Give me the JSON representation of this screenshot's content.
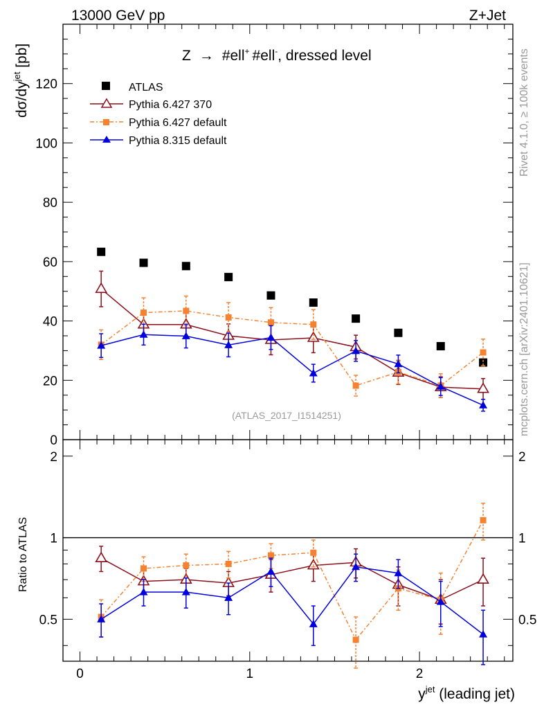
{
  "header": {
    "left": "13000 GeV pp",
    "right": "Z+Jet"
  },
  "side_text": {
    "rivet": "Rivet 4.1.0, ≥ 100k events",
    "mcplots": "mcplots.cern.ch [arXiv:2401.10621]"
  },
  "watermark": "(ATLAS_2017_I1514251)",
  "colors": {
    "atlas": "#000000",
    "py6_370": "#8b0f1a",
    "py6_default": "#f58231",
    "py8": "#0000dd"
  },
  "chart_data": [
    {
      "type": "scatter",
      "panel": "main",
      "title": "Z → #ell⁺ #ell⁻, dressed level",
      "title_parts": {
        "pre": "Z",
        "arrow": "→",
        "lep1": "#ell",
        "sup1": "+",
        "lep2": "#ell",
        "sup2": "-",
        "post": ", dressed level"
      },
      "ylabel_parts": {
        "base": "dσ/dy",
        "sup": "jet",
        "unit": " [pb]"
      },
      "xlim": [
        -0.1,
        2.55
      ],
      "ylim": [
        0,
        140
      ],
      "yticks": [
        0,
        20,
        40,
        60,
        80,
        100,
        120
      ],
      "ytick_labels": [
        "0",
        "20",
        "40",
        "60",
        "80",
        "100",
        "120"
      ],
      "x": [
        0.125,
        0.375,
        0.625,
        0.875,
        1.125,
        1.375,
        1.625,
        1.875,
        2.125,
        2.375
      ],
      "legend": [
        "ATLAS",
        "Pythia 6.427 370",
        "Pythia 6.427 default",
        "Pythia 8.315 default"
      ],
      "series": [
        {
          "name": "ATLAS",
          "values": [
            63.3,
            59.6,
            58.5,
            54.8,
            48.6,
            46.2,
            40.8,
            36.0,
            31.5,
            26.0
          ],
          "errors": [
            0.6,
            0.6,
            0.6,
            0.6,
            0.6,
            0.6,
            0.6,
            0.6,
            0.6,
            0.6
          ]
        },
        {
          "name": "Pythia 6.427 370",
          "values": [
            50.8,
            38.8,
            38.8,
            35.0,
            33.6,
            34.3,
            31.2,
            22.6,
            17.7,
            17.1
          ],
          "errors": [
            6.0,
            4.0,
            4.0,
            4.0,
            5.0,
            5.0,
            4.0,
            4.0,
            3.5,
            3.5
          ]
        },
        {
          "name": "Pythia 6.427 default",
          "values": [
            32.0,
            42.8,
            43.4,
            41.2,
            39.5,
            38.8,
            18.2,
            22.8,
            18.2,
            29.4
          ],
          "errors": [
            5.0,
            5.0,
            5.0,
            5.0,
            5.0,
            5.0,
            3.5,
            4.0,
            4.0,
            4.5
          ]
        },
        {
          "name": "Pythia 8.315 default",
          "values": [
            31.7,
            35.4,
            34.9,
            31.9,
            34.4,
            22.4,
            29.9,
            25.5,
            17.9,
            11.6
          ],
          "errors": [
            4.0,
            3.5,
            4.0,
            4.0,
            4.0,
            3.0,
            3.5,
            3.0,
            3.0,
            2.0
          ]
        }
      ]
    },
    {
      "type": "scatter",
      "panel": "ratio",
      "ylabel": "Ratio to ATLAS",
      "xlabel_parts": {
        "base": "y",
        "sup": "jet",
        "rest": " (leading jet)"
      },
      "xlim": [
        -0.1,
        2.55
      ],
      "ylim": [
        0.35,
        2.3
      ],
      "yscale": "log",
      "yticks": [
        0.5,
        1,
        2
      ],
      "ytick_labels": [
        "0.5",
        "1",
        "2"
      ],
      "xticks": [
        0,
        1,
        2
      ],
      "xtick_labels": [
        "0",
        "1",
        "2"
      ],
      "reference_line": 1,
      "x": [
        0.125,
        0.375,
        0.625,
        0.875,
        1.125,
        1.375,
        1.625,
        1.875,
        2.125,
        2.375
      ],
      "series": [
        {
          "name": "Pythia 6.427 370",
          "values": [
            0.84,
            0.69,
            0.7,
            0.68,
            0.73,
            0.79,
            0.81,
            0.67,
            0.59,
            0.7
          ],
          "errors": [
            0.09,
            0.07,
            0.07,
            0.07,
            0.1,
            0.1,
            0.1,
            0.11,
            0.11,
            0.14
          ]
        },
        {
          "name": "Pythia 6.427 default",
          "values": [
            0.51,
            0.77,
            0.79,
            0.8,
            0.86,
            0.88,
            0.42,
            0.65,
            0.59,
            1.16
          ],
          "errors": [
            0.08,
            0.08,
            0.08,
            0.09,
            0.09,
            0.1,
            0.09,
            0.11,
            0.15,
            0.18
          ]
        },
        {
          "name": "Pythia 8.315 default",
          "values": [
            0.5,
            0.63,
            0.63,
            0.6,
            0.75,
            0.48,
            0.78,
            0.74,
            0.58,
            0.44
          ],
          "errors": [
            0.07,
            0.07,
            0.08,
            0.08,
            0.09,
            0.08,
            0.09,
            0.09,
            0.11,
            0.1
          ]
        }
      ]
    }
  ]
}
